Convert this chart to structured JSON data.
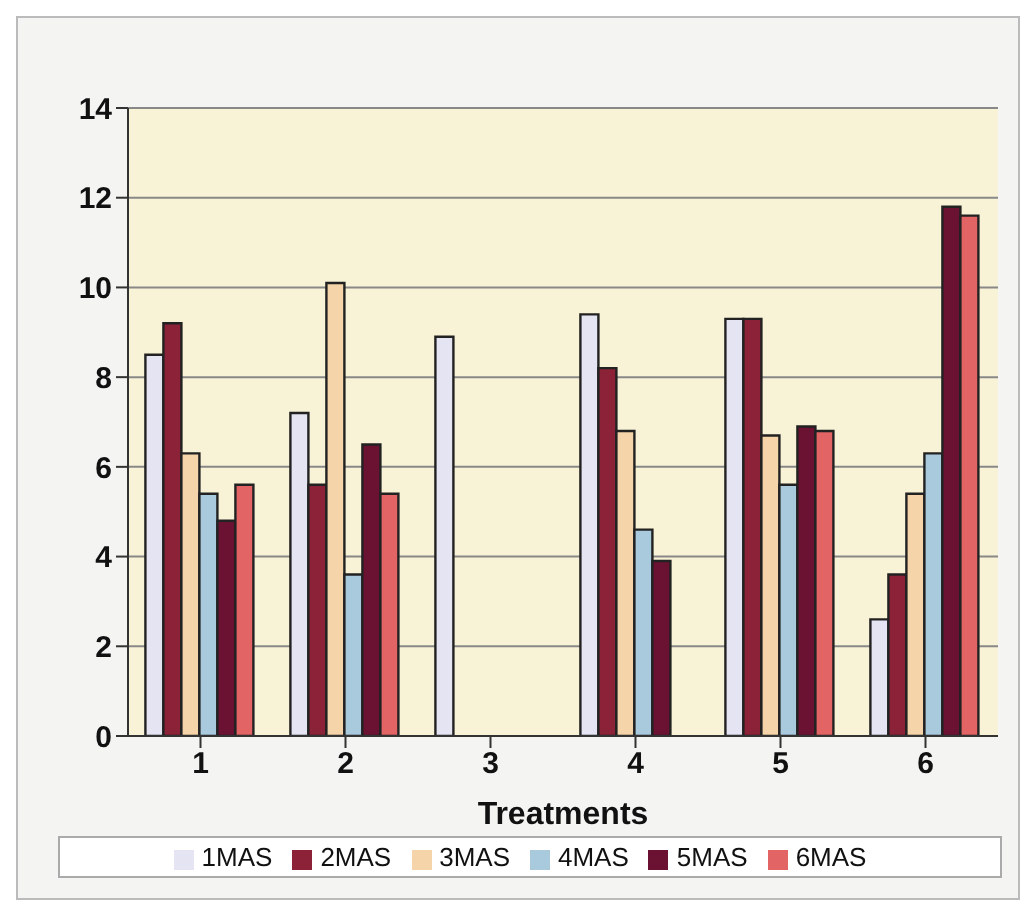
{
  "chart_data": {
    "type": "bar",
    "xlabel": "Treatments",
    "categories": [
      "1",
      "2",
      "3",
      "4",
      "5",
      "6"
    ],
    "series": [
      {
        "name": "1MAS",
        "color": "#e4e4f2",
        "values": [
          8.5,
          7.2,
          8.9,
          9.4,
          9.3,
          2.6
        ]
      },
      {
        "name": "2MAS",
        "color": "#8c2238",
        "values": [
          9.2,
          5.6,
          null,
          8.2,
          9.3,
          3.6
        ]
      },
      {
        "name": "3MAS",
        "color": "#f4d4a8",
        "values": [
          6.3,
          10.1,
          null,
          6.8,
          6.7,
          5.4
        ]
      },
      {
        "name": "4MAS",
        "color": "#a9c9dd",
        "values": [
          5.4,
          3.6,
          null,
          4.6,
          5.6,
          6.3
        ]
      },
      {
        "name": "5MAS",
        "color": "#6b1232",
        "values": [
          4.8,
          6.5,
          null,
          3.9,
          6.9,
          11.8
        ]
      },
      {
        "name": "6MAS",
        "color": "#e26464",
        "values": [
          5.6,
          5.4,
          null,
          null,
          6.8,
          11.6
        ]
      }
    ],
    "ylim": [
      0,
      14
    ],
    "yticks": [
      0,
      2,
      4,
      6,
      8,
      10,
      12,
      14
    ],
    "grid": "y",
    "legend": "bottom"
  }
}
